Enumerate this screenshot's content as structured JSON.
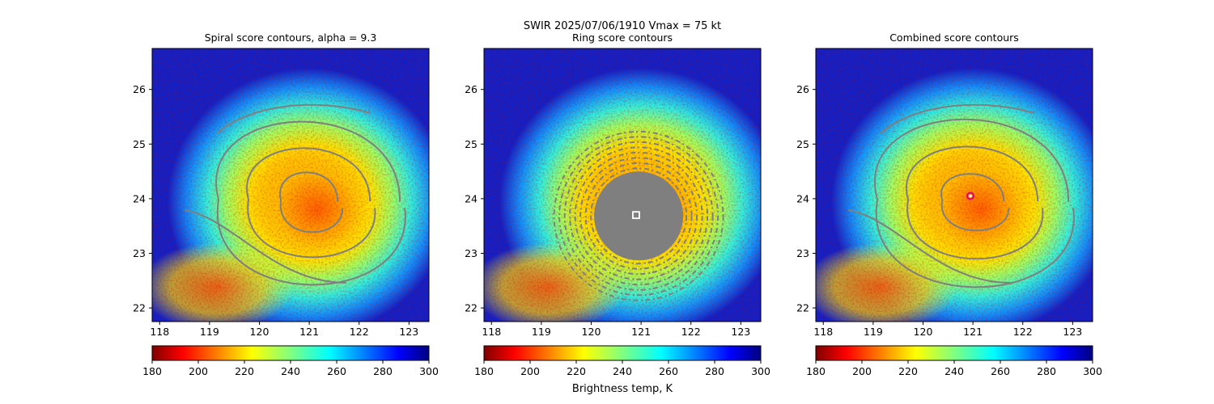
{
  "figure": {
    "suptitle_line1": "SWIR  2025/07/06/1910    Vmax = 75 kt",
    "colorbar_label": "Brightness temp, K"
  },
  "colors": {
    "contour": "#7f7f7f",
    "marker_white": "#ffffff",
    "marker_magenta": "#e0007a",
    "background_cold": "#1020c8"
  },
  "colorbar": {
    "colormap": "jet_r",
    "range": [
      180,
      300
    ],
    "tick_values": [
      180,
      200,
      220,
      240,
      260,
      280,
      300
    ],
    "tick_labels": [
      "180",
      "200",
      "220",
      "240",
      "260",
      "280",
      "300"
    ]
  },
  "chart_data": [
    {
      "type": "heatmap",
      "title": "Spiral score contours, alpha =  9.3",
      "xlabel": "",
      "ylabel": "",
      "xlim": [
        117.85,
        123.4
      ],
      "ylim": [
        21.75,
        26.75
      ],
      "xticks": [
        118,
        119,
        120,
        121,
        122,
        123
      ],
      "xtick_labels": [
        "118",
        "119",
        "120",
        "121",
        "122",
        "123"
      ],
      "yticks": [
        22,
        23,
        24,
        25,
        26
      ],
      "ytick_labels": [
        "22",
        "23",
        "24",
        "25",
        "26"
      ],
      "grid": false,
      "center": {
        "lon": 121.0,
        "lat": 23.95
      },
      "field": "brightness temperature (K)",
      "contours": "spiral score",
      "marker": null
    },
    {
      "type": "heatmap",
      "title": "Ring score contours",
      "xlabel": "",
      "ylabel": "",
      "xlim": [
        117.85,
        123.4
      ],
      "ylim": [
        21.75,
        26.75
      ],
      "xticks": [
        118,
        119,
        120,
        121,
        122,
        123
      ],
      "xtick_labels": [
        "118",
        "119",
        "120",
        "121",
        "122",
        "123"
      ],
      "yticks": [
        22,
        23,
        24,
        25,
        26
      ],
      "ytick_labels": [
        "22",
        "23",
        "24",
        "25",
        "26"
      ],
      "grid": false,
      "center": {
        "lon": 121.0,
        "lat": 23.95
      },
      "field": "brightness temperature (K)",
      "contours": "ring score",
      "marker": {
        "shape": "square",
        "lon": 120.9,
        "lat": 23.7
      }
    },
    {
      "type": "heatmap",
      "title": "Combined score contours",
      "xlabel": "",
      "ylabel": "",
      "xlim": [
        117.85,
        123.4
      ],
      "ylim": [
        21.75,
        26.75
      ],
      "xticks": [
        118,
        119,
        120,
        121,
        122,
        123
      ],
      "xtick_labels": [
        "118",
        "119",
        "120",
        "121",
        "122",
        "123"
      ],
      "yticks": [
        22,
        23,
        24,
        25,
        26
      ],
      "ytick_labels": [
        "22",
        "23",
        "24",
        "25",
        "26"
      ],
      "grid": false,
      "center": {
        "lon": 121.0,
        "lat": 23.95
      },
      "field": "brightness temperature (K)",
      "contours": "combined score",
      "marker": {
        "shape": "circle",
        "lon": 120.95,
        "lat": 24.05
      }
    }
  ]
}
